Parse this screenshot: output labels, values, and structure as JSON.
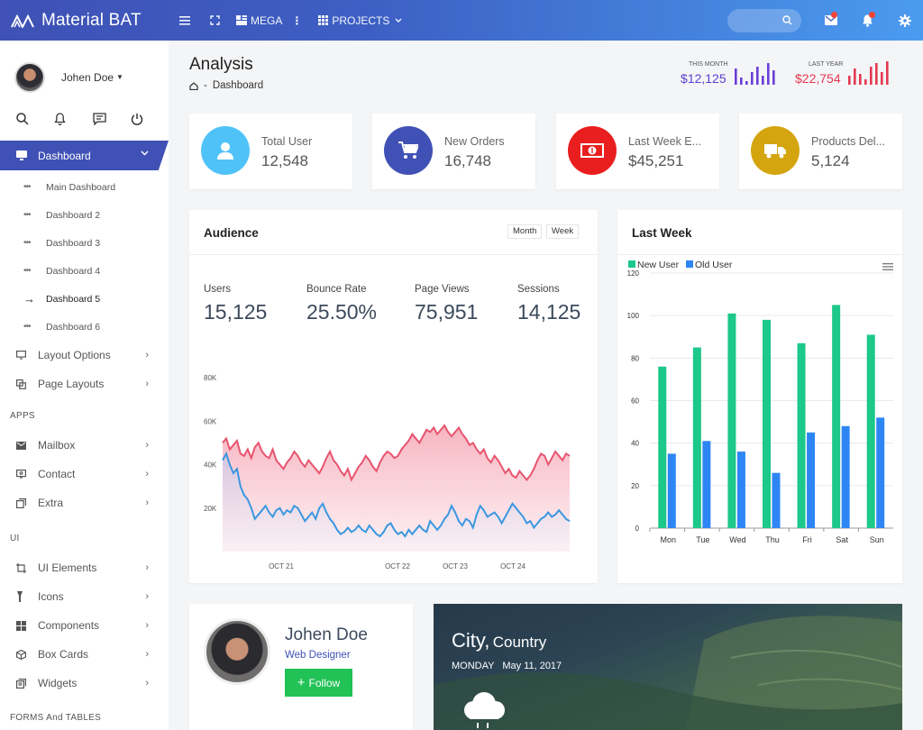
{
  "app": {
    "name": "Material BAT"
  },
  "topbar": {
    "mega_label": "MEGA",
    "projects_label": "PROJECTS"
  },
  "sidebar": {
    "user_name": "Johen Doe",
    "active_item": "Dashboard",
    "sub_items": [
      {
        "label": "Main Dashboard"
      },
      {
        "label": "Dashboard 2"
      },
      {
        "label": "Dashboard 3"
      },
      {
        "label": "Dashboard 4"
      },
      {
        "label": "Dashboard 5"
      },
      {
        "label": "Dashboard 6"
      }
    ],
    "items_a": [
      {
        "label": "Layout Options"
      },
      {
        "label": "Page Layouts"
      }
    ],
    "section_apps": "APPS",
    "items_apps": [
      {
        "label": "Mailbox"
      },
      {
        "label": "Contact"
      },
      {
        "label": "Extra"
      }
    ],
    "section_ui": "UI",
    "items_ui": [
      {
        "label": "UI Elements"
      },
      {
        "label": "Icons"
      },
      {
        "label": "Components"
      },
      {
        "label": "Box Cards"
      },
      {
        "label": "Widgets"
      }
    ],
    "section_forms": "FORMS And TABLES"
  },
  "page": {
    "title": "Analysis",
    "breadcrumb": "Dashboard",
    "this_month_label": "THIS MONTH",
    "this_month_value": "$12,125",
    "last_year_label": "LAST YEAR",
    "last_year_value": "$22,754"
  },
  "info_cards": [
    {
      "label": "Total User",
      "value": "12,548",
      "color": "#4fc3f7",
      "icon": "user-icon"
    },
    {
      "label": "New Orders",
      "value": "16,748",
      "color": "#3f51b5",
      "icon": "cart-icon"
    },
    {
      "label": "Last Week E...",
      "value": "$45,251",
      "color": "#e91e1e",
      "icon": "money-icon"
    },
    {
      "label": "Products Del...",
      "value": "5,124",
      "color": "#d4a50f",
      "icon": "truck-icon"
    }
  ],
  "audience": {
    "title": "Audience",
    "btn_month": "Month",
    "btn_week": "Week",
    "metrics": [
      {
        "label": "Users",
        "value": "15,125"
      },
      {
        "label": "Bounce Rate",
        "value": "25.50%"
      },
      {
        "label": "Page Views",
        "value": "75,951"
      },
      {
        "label": "Sessions",
        "value": "14,125"
      }
    ]
  },
  "last_week": {
    "title": "Last Week"
  },
  "profile": {
    "name": "Johen Doe",
    "role": "Web Designer",
    "follow_label": "Follow"
  },
  "weather": {
    "city": "City,",
    "country": "Country",
    "day": "MONDAY",
    "date": "May 11, 2017"
  },
  "chart_data": [
    {
      "type": "area",
      "title": "",
      "y_ticks": [
        "20K",
        "40K",
        "60K",
        "80K"
      ],
      "x_ticks": [
        "OCT 21",
        "OCT 22",
        "OCT 23",
        "OCT 24"
      ],
      "ylim": [
        0,
        80000
      ],
      "series": [
        {
          "color": "#e8546f",
          "values": [
            50000,
            52000,
            47000,
            49000,
            51000,
            45000,
            44000,
            47000,
            43000,
            48000,
            50000,
            46000,
            44000,
            43000,
            47000,
            42000,
            40000,
            38000,
            41000,
            43000,
            46000,
            44000,
            41000,
            39000,
            42000,
            40000,
            38000,
            36000,
            39000,
            43000,
            46000,
            42000,
            40000,
            37000,
            35000,
            38000,
            33000,
            36000,
            39000,
            41000,
            44000,
            42000,
            39000,
            37000,
            41000,
            44000,
            46000,
            45000,
            43000,
            44000,
            47000,
            49000,
            51000,
            54000,
            52000,
            50000,
            53000,
            56000,
            55000,
            57000,
            54000,
            56000,
            58000,
            55000,
            53000,
            55000,
            57000,
            54000,
            52000,
            49000,
            50000,
            47000,
            45000,
            47000,
            43000,
            41000,
            44000,
            42000,
            39000,
            36000,
            38000,
            35000,
            34000,
            37000,
            35000,
            33000,
            35000,
            38000,
            42000,
            45000,
            44000,
            40000,
            43000,
            46000,
            44000,
            42000,
            45000,
            44000
          ]
        },
        {
          "color": "#3a97e0",
          "values": [
            42000,
            45000,
            40000,
            36000,
            38000,
            30000,
            26000,
            24000,
            20000,
            15000,
            17000,
            19000,
            21000,
            18000,
            16000,
            19000,
            20000,
            17000,
            19000,
            18000,
            21000,
            20000,
            17000,
            14000,
            16000,
            18000,
            15000,
            20000,
            22000,
            18000,
            15000,
            13000,
            10000,
            8000,
            9000,
            11000,
            9000,
            10000,
            12000,
            10000,
            9000,
            12000,
            10000,
            8000,
            7000,
            9000,
            12000,
            13000,
            10000,
            8000,
            9000,
            7000,
            10000,
            8000,
            10000,
            12000,
            10000,
            9000,
            14000,
            12000,
            10000,
            12000,
            15000,
            17000,
            21000,
            18000,
            14000,
            12000,
            15000,
            14000,
            11000,
            17000,
            21000,
            19000,
            16000,
            17000,
            18000,
            16000,
            13000,
            16000,
            19000,
            22000,
            20000,
            18000,
            16000,
            13000,
            14000,
            11000,
            13000,
            15000,
            16000,
            18000,
            16000,
            17000,
            19000,
            17000,
            15000,
            14000
          ]
        }
      ]
    },
    {
      "type": "bar",
      "title": "",
      "categories": [
        "Mon",
        "Tue",
        "Wed",
        "Thu",
        "Fri",
        "Sat",
        "Sun"
      ],
      "ylim": [
        0,
        120
      ],
      "y_ticks": [
        0,
        20,
        40,
        60,
        80,
        100,
        120
      ],
      "legend": "top-left",
      "series": [
        {
          "name": "New User",
          "color": "#1cc88a",
          "values": [
            76,
            85,
            101,
            98,
            87,
            105,
            91
          ]
        },
        {
          "name": "Old User",
          "color": "#2e86f5",
          "values": [
            35,
            41,
            36,
            26,
            45,
            48,
            52
          ]
        }
      ]
    }
  ]
}
